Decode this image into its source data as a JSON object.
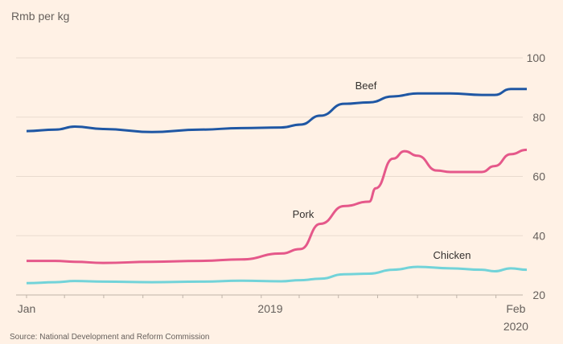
{
  "chart_data": {
    "type": "line",
    "title": "",
    "ylabel": "Rmb per kg",
    "xlabel": "",
    "ylim": [
      20,
      100
    ],
    "yticks": [
      20,
      40,
      60,
      80,
      100
    ],
    "xlim": [
      "2018-01-01",
      "2020-02-18"
    ],
    "xticks": [
      {
        "date": "2018-01-01",
        "label": "Jan",
        "sublabel": ""
      },
      {
        "date": "2019-01-15",
        "label": "2019",
        "sublabel": ""
      },
      {
        "date": "2020-02-01",
        "label": "Feb",
        "sublabel": "2020"
      }
    ],
    "grid": true,
    "source": "Source: National Development and Reform Commission",
    "series": [
      {
        "name": "Beef",
        "color": "#1f57a4",
        "x": [
          "2018-01-01",
          "2018-02-15",
          "2018-03-17",
          "2018-05-01",
          "2018-07-15",
          "2018-09-28",
          "2018-12-01",
          "2019-02-01",
          "2019-03-03",
          "2019-04-03",
          "2019-05-10",
          "2019-06-18",
          "2019-07-25",
          "2019-09-01",
          "2019-10-22",
          "2019-12-10",
          "2019-12-30",
          "2020-01-24",
          "2020-02-18"
        ],
        "y": [
          75.3,
          75.8,
          76.8,
          76,
          75,
          75.8,
          76.3,
          76.5,
          77.5,
          80.5,
          84.5,
          85,
          87,
          88,
          88,
          87.5,
          87.5,
          89.5,
          89.5
        ]
      },
      {
        "name": "Pork",
        "color": "#e5588a",
        "x": [
          "2018-01-01",
          "2018-02-15",
          "2018-03-17",
          "2018-05-01",
          "2018-07-15",
          "2018-09-28",
          "2018-12-01",
          "2019-02-01",
          "2019-03-03",
          "2019-04-03",
          "2019-05-10",
          "2019-06-18",
          "2019-06-28",
          "2019-07-25",
          "2019-08-12",
          "2019-09-01",
          "2019-10-01",
          "2019-10-22",
          "2019-12-10",
          "2019-12-30",
          "2020-01-24",
          "2020-02-18"
        ],
        "y": [
          31.5,
          31.5,
          31.2,
          30.8,
          31.2,
          31.5,
          32,
          34,
          35.5,
          44,
          50,
          51.5,
          56,
          66,
          68.5,
          67,
          62,
          61.5,
          61.5,
          63.5,
          67.5,
          69
        ]
      },
      {
        "name": "Chicken",
        "color": "#72d3d9",
        "x": [
          "2018-01-01",
          "2018-02-15",
          "2018-03-17",
          "2018-05-01",
          "2018-07-15",
          "2018-09-28",
          "2018-12-01",
          "2019-02-01",
          "2019-03-03",
          "2019-04-03",
          "2019-05-10",
          "2019-06-18",
          "2019-07-25",
          "2019-09-01",
          "2019-10-22",
          "2019-12-10",
          "2019-12-30",
          "2020-01-24",
          "2020-02-18"
        ],
        "y": [
          24,
          24.3,
          24.7,
          24.5,
          24.3,
          24.5,
          24.8,
          24.6,
          25,
          25.5,
          27,
          27.2,
          28.5,
          29.5,
          29,
          28.5,
          28,
          29,
          28.5
        ]
      }
    ]
  }
}
